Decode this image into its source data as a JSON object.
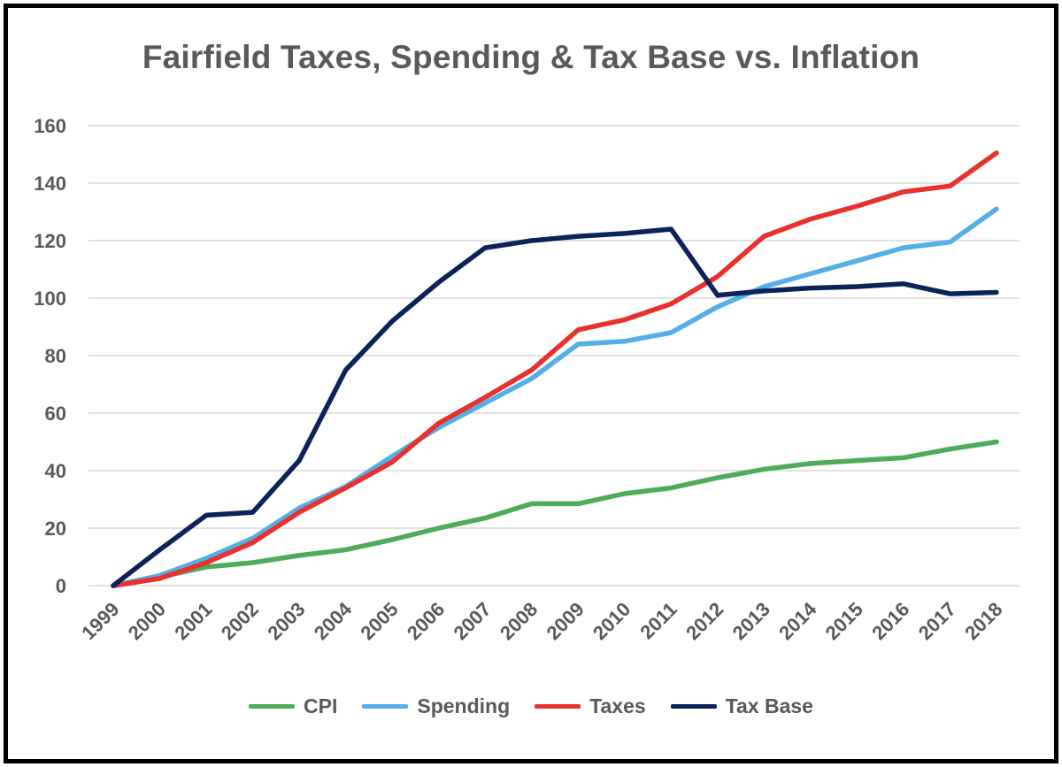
{
  "chart_data": {
    "type": "line",
    "title": "Fairfield Taxes, Spending & Tax Base vs. Inflation",
    "xlabel": "",
    "ylabel": "",
    "ylim": [
      0,
      160
    ],
    "yticks": [
      "0",
      "20",
      "40",
      "60",
      "80",
      "100",
      "120",
      "140",
      "160"
    ],
    "grid": true,
    "legend_position": "bottom",
    "categories": [
      "1999",
      "2000",
      "2001",
      "2002",
      "2003",
      "2004",
      "2005",
      "2006",
      "2007",
      "2008",
      "2009",
      "2010",
      "2011",
      "2012",
      "2013",
      "2014",
      "2015",
      "2016",
      "2017",
      "2018"
    ],
    "series": [
      {
        "name": "CPI",
        "color": "#4eab5c",
        "values": [
          0,
          3,
          6.5,
          8,
          10.5,
          12.5,
          16,
          20,
          23.5,
          28.5,
          28.5,
          32,
          34,
          37.5,
          40.5,
          42.5,
          43.5,
          44.5,
          47.5,
          50
        ]
      },
      {
        "name": "Spending",
        "color": "#54aee8",
        "values": [
          0,
          3.5,
          9.5,
          16.5,
          27,
          34.5,
          45,
          55,
          63.5,
          72,
          84,
          85,
          88,
          97,
          104,
          108.5,
          113,
          117.5,
          119.5,
          131
        ]
      },
      {
        "name": "Taxes",
        "color": "#e9302c",
        "values": [
          0,
          2.5,
          8,
          15,
          25.5,
          34,
          43,
          56.5,
          65.5,
          75,
          89,
          92.5,
          98,
          107.5,
          121.5,
          127.5,
          132,
          137,
          139,
          150.5
        ]
      },
      {
        "name": "Tax Base",
        "color": "#0d2259",
        "values": [
          0,
          12.5,
          24.5,
          25.5,
          43.5,
          75,
          92,
          105.5,
          117.5,
          120,
          121.5,
          122.5,
          124,
          101,
          102.5,
          103.5,
          104,
          105,
          101.5,
          102
        ]
      }
    ]
  }
}
